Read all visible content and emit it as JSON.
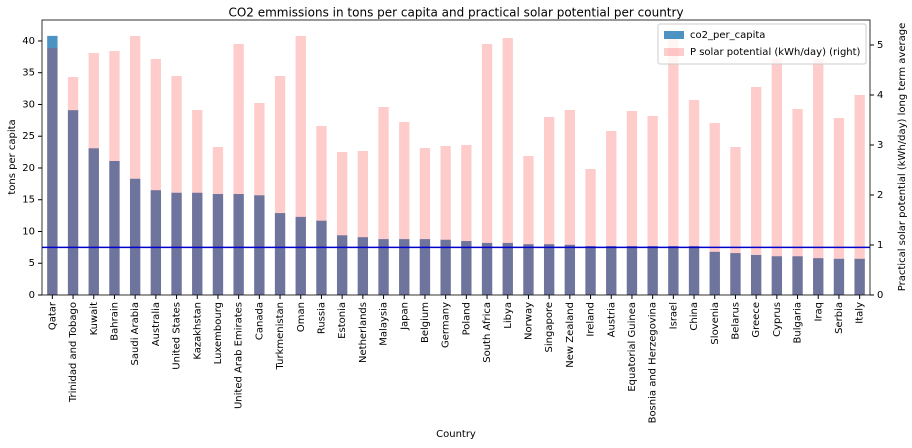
{
  "chart_data": {
    "type": "bar",
    "title": "CO2 emmissions in tons per capita and practical solar potential per country",
    "x_label": "Country",
    "y_label": "tons per capita",
    "y2_label": "Practical solar potential (kWh/day) long term average",
    "categories": [
      "Qatar",
      "Trinidad and Tobago",
      "Kuwait",
      "Bahrain",
      "Saudi Arabia",
      "Australia",
      "United States",
      "Kazakhstan",
      "Luxembourg",
      "United Arab Emirates",
      "Canada",
      "Turkmenistan",
      "Oman",
      "Russia",
      "Estonia",
      "Netherlands",
      "Malaysia",
      "Japan",
      "Belgium",
      "Germany",
      "Poland",
      "South Africa",
      "Libya",
      "Norway",
      "Singapore",
      "New Zealand",
      "Ireland",
      "Austria",
      "Equatorial Guinea",
      "Bosnia and Herzegovina",
      "Israel",
      "China",
      "Slovenia",
      "Belarus",
      "Greece",
      "Cyprus",
      "Bulgaria",
      "Iraq",
      "Serbia",
      "Italy"
    ],
    "series": [
      {
        "name": "co2_per_capita",
        "color": "#1f77b4",
        "opacity": 0.8,
        "values": [
          40.8,
          29.1,
          23.1,
          21.1,
          18.3,
          16.5,
          16.1,
          16.1,
          15.9,
          15.9,
          15.7,
          12.9,
          12.3,
          11.7,
          9.4,
          9.1,
          8.8,
          8.8,
          8.8,
          8.7,
          8.5,
          8.2,
          8.2,
          8.0,
          8.0,
          7.9,
          7.7,
          7.7,
          7.7,
          7.7,
          7.7,
          7.7,
          6.8,
          6.6,
          6.3,
          6.1,
          6.1,
          5.8,
          5.7,
          5.7
        ]
      },
      {
        "name": "P solar potential (kWh/day) (right)",
        "color": "#ff0000",
        "opacity": 0.2,
        "axis": "y2",
        "values": [
          4.94,
          4.36,
          4.84,
          4.88,
          5.18,
          4.72,
          4.38,
          3.7,
          2.96,
          5.02,
          3.84,
          4.38,
          5.18,
          3.38,
          2.86,
          2.88,
          3.76,
          3.46,
          2.94,
          2.98,
          3.0,
          5.02,
          5.14,
          2.78,
          3.56,
          3.7,
          2.52,
          3.28,
          3.68,
          3.58,
          5.14,
          3.9,
          3.44,
          2.96,
          4.16,
          4.72,
          3.72,
          4.72,
          3.54,
          4.0
        ]
      }
    ],
    "hline": 7.5,
    "hline_color": "#0000cc",
    "ylim": [
      0,
      43.3
    ],
    "yticks": [
      0,
      5,
      10,
      15,
      20,
      25,
      30,
      35,
      40
    ],
    "y2lim": [
      0,
      5.5
    ],
    "y2ticks": [
      0,
      1,
      2,
      3,
      4,
      5
    ],
    "legend": "upper right"
  }
}
